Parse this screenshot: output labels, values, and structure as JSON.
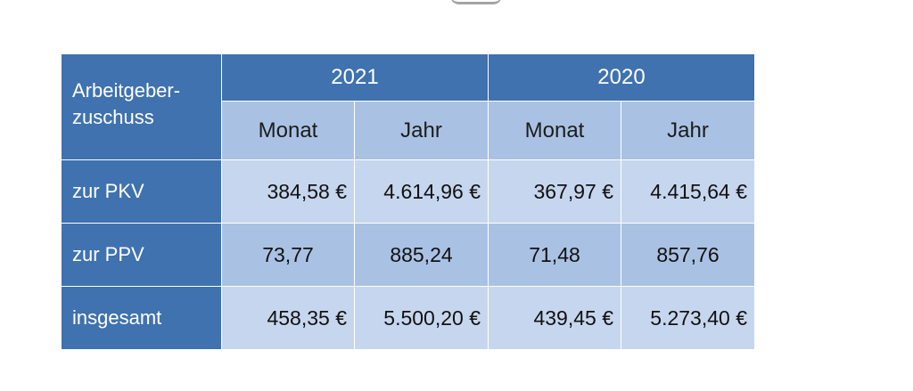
{
  "table": {
    "corner_label": "Arbeitgeber-\nzuschuss",
    "years": [
      "2021",
      "2020"
    ],
    "subheaders": [
      "Monat",
      "Jahr",
      "Monat",
      "Jahr"
    ],
    "rows": [
      {
        "label": "zur PKV",
        "values": [
          "384,58 €",
          "4.614,96 €",
          "367,97 €",
          "4.415,64 €"
        ]
      },
      {
        "label": "zur PPV",
        "values": [
          "73,77",
          "885,24",
          "71,48",
          "857,76"
        ]
      },
      {
        "label": "insgesamt",
        "values": [
          "458,35 €",
          "5.500,20 €",
          "439,45 €",
          "5.273,40 €"
        ]
      }
    ]
  },
  "colors": {
    "header_blue": "#3f72af",
    "cell_mid": "#a9c2e4",
    "cell_light": "#c6d6ee"
  }
}
